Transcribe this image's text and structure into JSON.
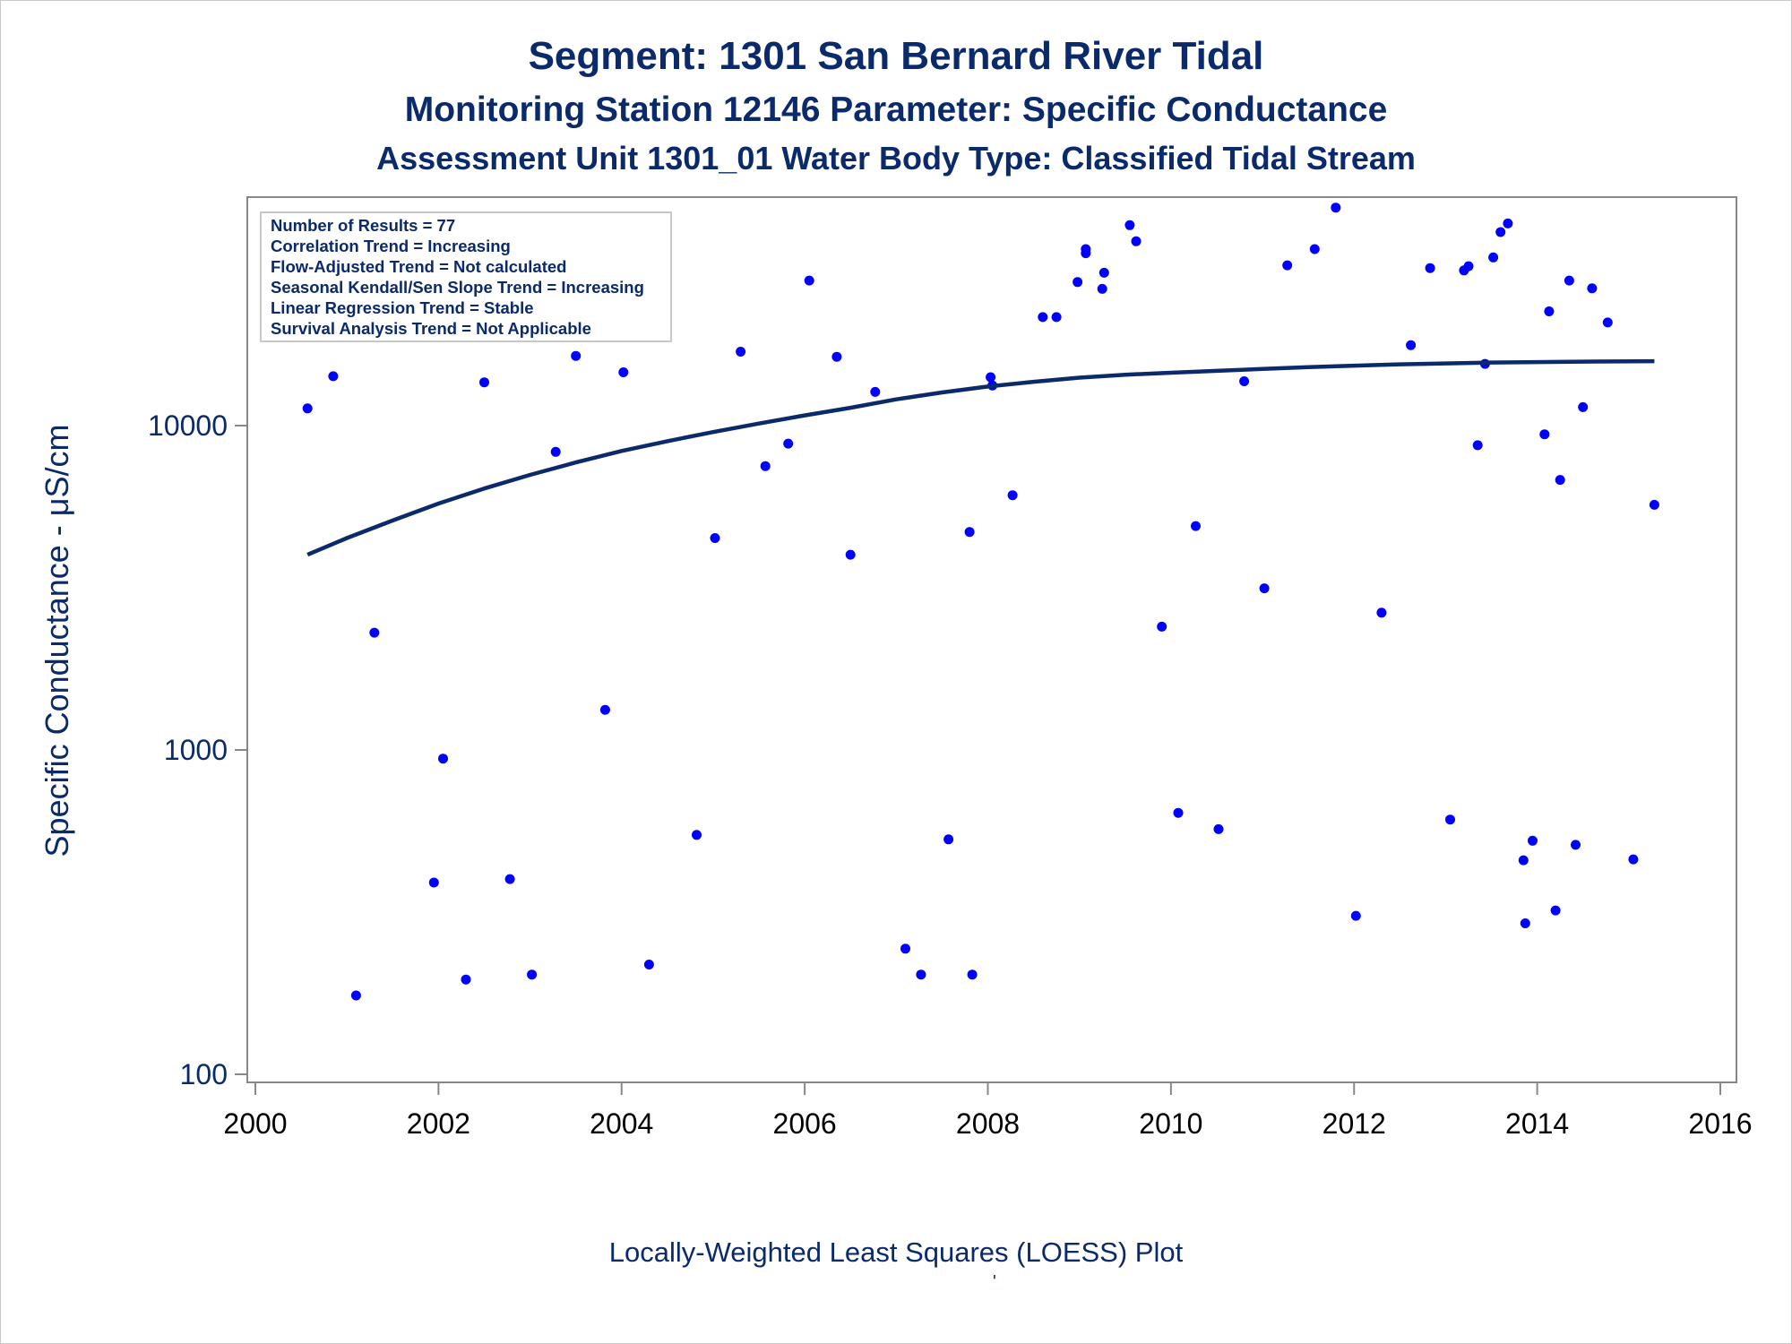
{
  "title": "Segment: 1301  San Bernard River Tidal",
  "subtitle1": "Monitoring Station 12146 Parameter: Specific Conductance",
  "subtitle2": "Assessment Unit 1301_01   Water Body Type: Classified Tidal Stream",
  "footer": "Locally-Weighted Least Squares (LOESS) Plot",
  "footer_mark": "'",
  "stats": [
    "Number of Results = 77",
    "Correlation Trend = Increasing",
    "Flow-Adjusted Trend = Not calculated",
    "Seasonal Kendall/Sen Slope Trend = Increasing",
    "Linear Regression Trend = Stable",
    "Survival Analysis Trend = Not Applicable"
  ],
  "chart_data": {
    "type": "scatter",
    "title": "Segment: 1301  San Bernard River Tidal",
    "xlabel": "",
    "ylabel": "Specific Conductance -  μS/cm",
    "xlim": [
      2000,
      2016
    ],
    "ylim": [
      100,
      40000
    ],
    "y_scale": "log",
    "grid": false,
    "x_ticks": [
      2000,
      2002,
      2004,
      2006,
      2008,
      2010,
      2012,
      2014,
      2016
    ],
    "x_tick_labels": [
      "2000",
      "2002",
      "2004",
      "2006",
      "2008",
      "2010",
      "2012",
      "2014",
      "2016"
    ],
    "y_ticks": [
      100,
      1000,
      10000
    ],
    "y_tick_labels": [
      "100",
      "1000",
      "10000"
    ],
    "colors": {
      "points": "#0000ff",
      "line": "#0b2a6b",
      "text": "#0b2a6b",
      "axis": "#888888"
    },
    "series": [
      {
        "type": "scatter",
        "points": [
          [
            2000.57,
            11300
          ],
          [
            2000.85,
            14200
          ],
          [
            2001.1,
            175
          ],
          [
            2001.3,
            2300
          ],
          [
            2001.56,
            22000
          ],
          [
            2001.95,
            390
          ],
          [
            2002.05,
            940
          ],
          [
            2002.3,
            196
          ],
          [
            2002.5,
            13600
          ],
          [
            2002.78,
            400
          ],
          [
            2003.02,
            203
          ],
          [
            2003.28,
            8300
          ],
          [
            2003.5,
            16400
          ],
          [
            2003.82,
            1330
          ],
          [
            2004.02,
            14600
          ],
          [
            2004.3,
            218
          ],
          [
            2004.82,
            547
          ],
          [
            2005.02,
            4500
          ],
          [
            2005.3,
            16900
          ],
          [
            2005.57,
            7500
          ],
          [
            2005.82,
            8800
          ],
          [
            2006.05,
            28000
          ],
          [
            2006.35,
            16300
          ],
          [
            2006.5,
            4000
          ],
          [
            2006.77,
            12700
          ],
          [
            2007.1,
            244
          ],
          [
            2007.27,
            203
          ],
          [
            2007.57,
            530
          ],
          [
            2007.8,
            4700
          ],
          [
            2007.83,
            203
          ],
          [
            2008.03,
            14100
          ],
          [
            2008.05,
            13300
          ],
          [
            2008.27,
            6100
          ],
          [
            2008.6,
            21600
          ],
          [
            2008.75,
            21600
          ],
          [
            2008.98,
            27700
          ],
          [
            2009.07,
            34000
          ],
          [
            2009.07,
            35000
          ],
          [
            2009.25,
            26400
          ],
          [
            2009.27,
            29600
          ],
          [
            2009.55,
            41500
          ],
          [
            2009.62,
            37000
          ],
          [
            2009.9,
            2400
          ],
          [
            2010.08,
            640
          ],
          [
            2010.27,
            4900
          ],
          [
            2010.52,
            570
          ],
          [
            2010.8,
            13700
          ],
          [
            2011.02,
            3150
          ],
          [
            2011.27,
            31200
          ],
          [
            2011.57,
            35000
          ],
          [
            2011.8,
            47000
          ],
          [
            2012.02,
            308
          ],
          [
            2012.3,
            2650
          ],
          [
            2012.62,
            17700
          ],
          [
            2012.83,
            30600
          ],
          [
            2013.05,
            610
          ],
          [
            2013.2,
            30100
          ],
          [
            2013.25,
            31000
          ],
          [
            2013.35,
            8700
          ],
          [
            2013.43,
            15500
          ],
          [
            2013.52,
            33000
          ],
          [
            2013.6,
            39500
          ],
          [
            2013.68,
            42000
          ],
          [
            2013.85,
            457
          ],
          [
            2013.87,
            292
          ],
          [
            2013.95,
            525
          ],
          [
            2014.08,
            9400
          ],
          [
            2014.13,
            22500
          ],
          [
            2014.2,
            320
          ],
          [
            2014.25,
            6800
          ],
          [
            2014.35,
            28000
          ],
          [
            2014.42,
            510
          ],
          [
            2014.5,
            11400
          ],
          [
            2014.6,
            26500
          ],
          [
            2014.77,
            20800
          ],
          [
            2015.05,
            460
          ],
          [
            2015.28,
            5700
          ]
        ]
      },
      {
        "type": "line",
        "points": [
          [
            2000.57,
            4000
          ],
          [
            2001.0,
            4500
          ],
          [
            2001.5,
            5100
          ],
          [
            2002.0,
            5750
          ],
          [
            2002.5,
            6400
          ],
          [
            2003.0,
            7050
          ],
          [
            2003.5,
            7700
          ],
          [
            2004.0,
            8350
          ],
          [
            2004.5,
            8950
          ],
          [
            2005.0,
            9550
          ],
          [
            2005.5,
            10150
          ],
          [
            2006.0,
            10750
          ],
          [
            2006.5,
            11350
          ],
          [
            2007.0,
            12050
          ],
          [
            2007.5,
            12650
          ],
          [
            2008.0,
            13200
          ],
          [
            2008.5,
            13650
          ],
          [
            2009.0,
            14050
          ],
          [
            2009.5,
            14350
          ],
          [
            2010.0,
            14550
          ],
          [
            2010.5,
            14750
          ],
          [
            2011.0,
            14950
          ],
          [
            2011.5,
            15150
          ],
          [
            2012.0,
            15300
          ],
          [
            2012.5,
            15450
          ],
          [
            2013.0,
            15550
          ],
          [
            2013.5,
            15650
          ],
          [
            2014.0,
            15700
          ],
          [
            2014.5,
            15750
          ],
          [
            2015.28,
            15800
          ]
        ]
      }
    ]
  }
}
